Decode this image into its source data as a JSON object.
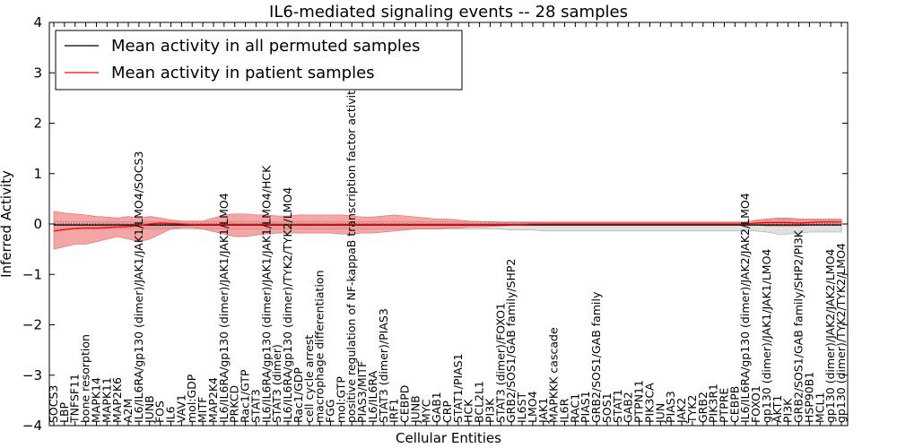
{
  "chart_data": {
    "type": "line",
    "title": "IL6-mediated signaling events -- 28 samples",
    "xlabel": "Cellular Entities",
    "ylabel": "Inferred Activity",
    "ylim": [
      -4,
      4
    ],
    "yticks": [
      "4",
      "3",
      "2",
      "1",
      "0",
      "−1",
      "−2",
      "−3",
      "−4"
    ],
    "ytick_values": [
      4,
      3,
      2,
      1,
      0,
      -1,
      -2,
      -3,
      -4
    ],
    "legend_position": "top-left",
    "categories": [
      "SOCS3",
      "LBP",
      "TNFSF11",
      "bone resorption",
      "MAPK14",
      "MAPK11",
      "MAP2K6",
      "A2M",
      "IL6/IL6RA/gp130 (dimer)/JAK1/JAK1/LMO4/SOCS3",
      "JUNB",
      "FOS",
      "IL6",
      "VAV1",
      "mol:GDP",
      "MITF",
      "MAP2K4",
      "IL6/IL6RA/gp130 (dimer)/JAK1/JAK1/LMO4",
      "PRKCD",
      "Rac1/GTP",
      "STAT3",
      "IL6/IL6RA/gp130 (dimer)/JAK1/JAK1/LMO4/HCK",
      "STAT3 (dimer)",
      "IL6/IL6RA/gp130 (dimer)/TYK2/TYK2/LMO4",
      "Rac1/GDP",
      "cell cycle arrest",
      "macrophage differentiation",
      "FGG",
      "mol:GTP",
      "positive regulation of NF-kappaB transcription factor activity",
      "PIAS3/MITF",
      "IL6/IL6RA",
      "STAT3 (dimer)/PIAS3",
      "IRF1",
      "CEBPD",
      "JUNB",
      "MYC",
      "GAB1",
      "CRP",
      "STAT1/PIAS1",
      "HCK",
      "BCL2L1",
      "PI3K",
      "STAT3 (dimer)/FOXO1",
      "GRB2/SOS1/GAB family/SHP2",
      "IL6ST",
      "LMO4",
      "JAK1",
      "MAPKKK cascade",
      "IL6R",
      "RAC1",
      "PIAS1",
      "GRB2/SOS1/GAB family",
      "SOS1",
      "STAT1",
      "GAB2",
      "PTPN11",
      "PIK3CA",
      "JUN",
      "PIAS3",
      "JAK2",
      "TYK2",
      "GRB2",
      "PIK3R1",
      "PTPRE",
      "CEBPB",
      "IL6/IL6RA/gp130 (dimer)/JAK2/JAK2/LMO4",
      "FOXO1",
      "gp130 (dimer)/JAK1/JAK1/LMO4",
      "AKT1",
      "PI3K",
      "GRB2/SOS1/GAB family/SHP2/PI3K",
      "HSP90B1",
      "MCL1",
      "gp130 (dimer)/JAK2/JAK2/LMO4",
      "gp130 (dimer)/TYK2/TYK2/LMO4"
    ],
    "series": [
      {
        "name": "Mean activity in all permuted samples",
        "color": "#000000",
        "values": [
          -0.02,
          -0.02,
          -0.02,
          -0.02,
          -0.02,
          -0.02,
          -0.02,
          -0.02,
          -0.02,
          -0.02,
          -0.02,
          -0.02,
          -0.02,
          -0.02,
          -0.02,
          -0.02,
          -0.02,
          -0.02,
          -0.02,
          -0.02,
          -0.02,
          -0.02,
          -0.02,
          -0.02,
          -0.02,
          -0.02,
          -0.02,
          -0.02,
          -0.02,
          -0.02,
          -0.02,
          -0.02,
          -0.02,
          -0.02,
          -0.02,
          -0.02,
          -0.02,
          -0.02,
          -0.02,
          -0.02,
          -0.02,
          -0.02,
          -0.02,
          -0.02,
          -0.02,
          -0.02,
          -0.02,
          -0.02,
          -0.02,
          -0.02,
          -0.02,
          -0.02,
          -0.02,
          -0.02,
          -0.02,
          -0.02,
          -0.02,
          -0.02,
          -0.02,
          -0.02,
          -0.02,
          -0.02,
          -0.02,
          -0.02,
          -0.02,
          -0.02,
          -0.02,
          -0.02,
          -0.02,
          -0.02,
          -0.02,
          -0.02,
          -0.02,
          -0.02,
          -0.02
        ],
        "band_low": [
          -0.1,
          -0.1,
          -0.1,
          -0.1,
          -0.1,
          -0.1,
          -0.1,
          -0.1,
          -0.1,
          -0.1,
          -0.1,
          -0.1,
          -0.1,
          -0.1,
          -0.1,
          -0.1,
          -0.1,
          -0.1,
          -0.1,
          -0.1,
          -0.1,
          -0.1,
          -0.1,
          -0.1,
          -0.1,
          -0.1,
          -0.1,
          -0.1,
          -0.1,
          -0.1,
          -0.1,
          -0.1,
          -0.1,
          -0.1,
          -0.1,
          -0.1,
          -0.1,
          -0.1,
          -0.1,
          -0.1,
          -0.1,
          -0.1,
          -0.1,
          -0.12,
          -0.12,
          -0.12,
          -0.14,
          -0.14,
          -0.14,
          -0.14,
          -0.14,
          -0.14,
          -0.14,
          -0.14,
          -0.14,
          -0.14,
          -0.14,
          -0.14,
          -0.14,
          -0.14,
          -0.14,
          -0.14,
          -0.14,
          -0.14,
          -0.14,
          -0.14,
          -0.14,
          -0.16,
          -0.2,
          -0.2,
          -0.18,
          -0.16,
          -0.16,
          -0.16,
          -0.16
        ],
        "band_high": [
          0.05,
          0.05,
          0.05,
          0.05,
          0.05,
          0.05,
          0.05,
          0.05,
          0.05,
          0.05,
          0.05,
          0.05,
          0.05,
          0.05,
          0.05,
          0.05,
          0.05,
          0.05,
          0.05,
          0.05,
          0.05,
          0.05,
          0.05,
          0.05,
          0.05,
          0.05,
          0.05,
          0.05,
          0.05,
          0.05,
          0.05,
          0.05,
          0.05,
          0.05,
          0.05,
          0.05,
          0.05,
          0.05,
          0.05,
          0.05,
          0.05,
          0.05,
          0.05,
          0.05,
          0.05,
          0.05,
          0.05,
          0.05,
          0.05,
          0.05,
          0.05,
          0.05,
          0.05,
          0.05,
          0.05,
          0.05,
          0.05,
          0.05,
          0.05,
          0.05,
          0.05,
          0.05,
          0.05,
          0.05,
          0.05,
          0.05,
          0.06,
          0.08,
          0.1,
          0.1,
          0.09,
          0.08,
          0.08,
          0.08,
          0.08
        ]
      },
      {
        "name": "Mean activity in patient samples",
        "color": "#ff0000",
        "values": [
          -0.14,
          -0.11,
          -0.09,
          -0.08,
          -0.08,
          -0.07,
          -0.06,
          -0.05,
          -0.03,
          0.0,
          0.02,
          0.01,
          0.0,
          -0.01,
          -0.01,
          -0.01,
          -0.01,
          -0.01,
          -0.01,
          -0.01,
          -0.01,
          -0.01,
          -0.01,
          -0.01,
          -0.01,
          -0.01,
          -0.01,
          -0.01,
          -0.01,
          -0.01,
          -0.01,
          -0.01,
          -0.01,
          -0.01,
          -0.01,
          -0.01,
          -0.01,
          -0.01,
          -0.01,
          -0.01,
          -0.01,
          -0.01,
          -0.01,
          -0.01,
          -0.01,
          0.0,
          0.0,
          0.0,
          0.0,
          0.0,
          0.0,
          0.0,
          0.0,
          0.0,
          0.0,
          0.0,
          0.0,
          0.0,
          0.0,
          0.0,
          0.0,
          0.0,
          0.0,
          0.0,
          0.0,
          0.0,
          0.02,
          0.03,
          0.03,
          0.03,
          0.02,
          0.03,
          0.04,
          0.04,
          0.04
        ],
        "band_low": [
          -0.5,
          -0.45,
          -0.4,
          -0.4,
          -0.35,
          -0.3,
          -0.25,
          -0.3,
          -0.35,
          -0.3,
          -0.2,
          -0.1,
          -0.07,
          -0.07,
          -0.1,
          -0.15,
          -0.2,
          -0.25,
          -0.25,
          -0.22,
          -0.2,
          -0.18,
          -0.18,
          -0.18,
          -0.18,
          -0.18,
          -0.18,
          -0.2,
          -0.2,
          -0.18,
          -0.18,
          -0.16,
          -0.14,
          -0.12,
          -0.1,
          -0.1,
          -0.1,
          -0.08,
          -0.08,
          -0.06,
          -0.06,
          -0.05,
          -0.04,
          -0.02,
          -0.02,
          -0.02,
          -0.02,
          -0.02,
          -0.02,
          -0.02,
          -0.02,
          -0.02,
          -0.02,
          -0.02,
          -0.02,
          -0.02,
          -0.02,
          -0.02,
          -0.02,
          -0.02,
          -0.02,
          -0.02,
          -0.02,
          -0.02,
          -0.02,
          -0.02,
          -0.02,
          -0.04,
          -0.04,
          -0.04,
          -0.04,
          -0.02,
          -0.02,
          -0.02,
          -0.02
        ],
        "band_high": [
          0.25,
          0.22,
          0.2,
          0.18,
          0.15,
          0.14,
          0.12,
          0.15,
          0.12,
          0.15,
          0.12,
          0.08,
          0.06,
          0.06,
          0.06,
          0.12,
          0.18,
          0.2,
          0.2,
          0.18,
          0.18,
          0.16,
          0.16,
          0.18,
          0.18,
          0.18,
          0.18,
          0.18,
          0.16,
          0.14,
          0.14,
          0.16,
          0.18,
          0.16,
          0.14,
          0.12,
          0.1,
          0.1,
          0.08,
          0.06,
          0.05,
          0.04,
          0.03,
          0.03,
          0.03,
          0.03,
          0.03,
          0.03,
          0.03,
          0.03,
          0.03,
          0.03,
          0.03,
          0.03,
          0.03,
          0.03,
          0.03,
          0.03,
          0.03,
          0.03,
          0.03,
          0.03,
          0.03,
          0.03,
          0.03,
          0.03,
          0.08,
          0.1,
          0.12,
          0.12,
          0.1,
          0.1,
          0.1,
          0.1,
          0.1
        ]
      }
    ]
  }
}
